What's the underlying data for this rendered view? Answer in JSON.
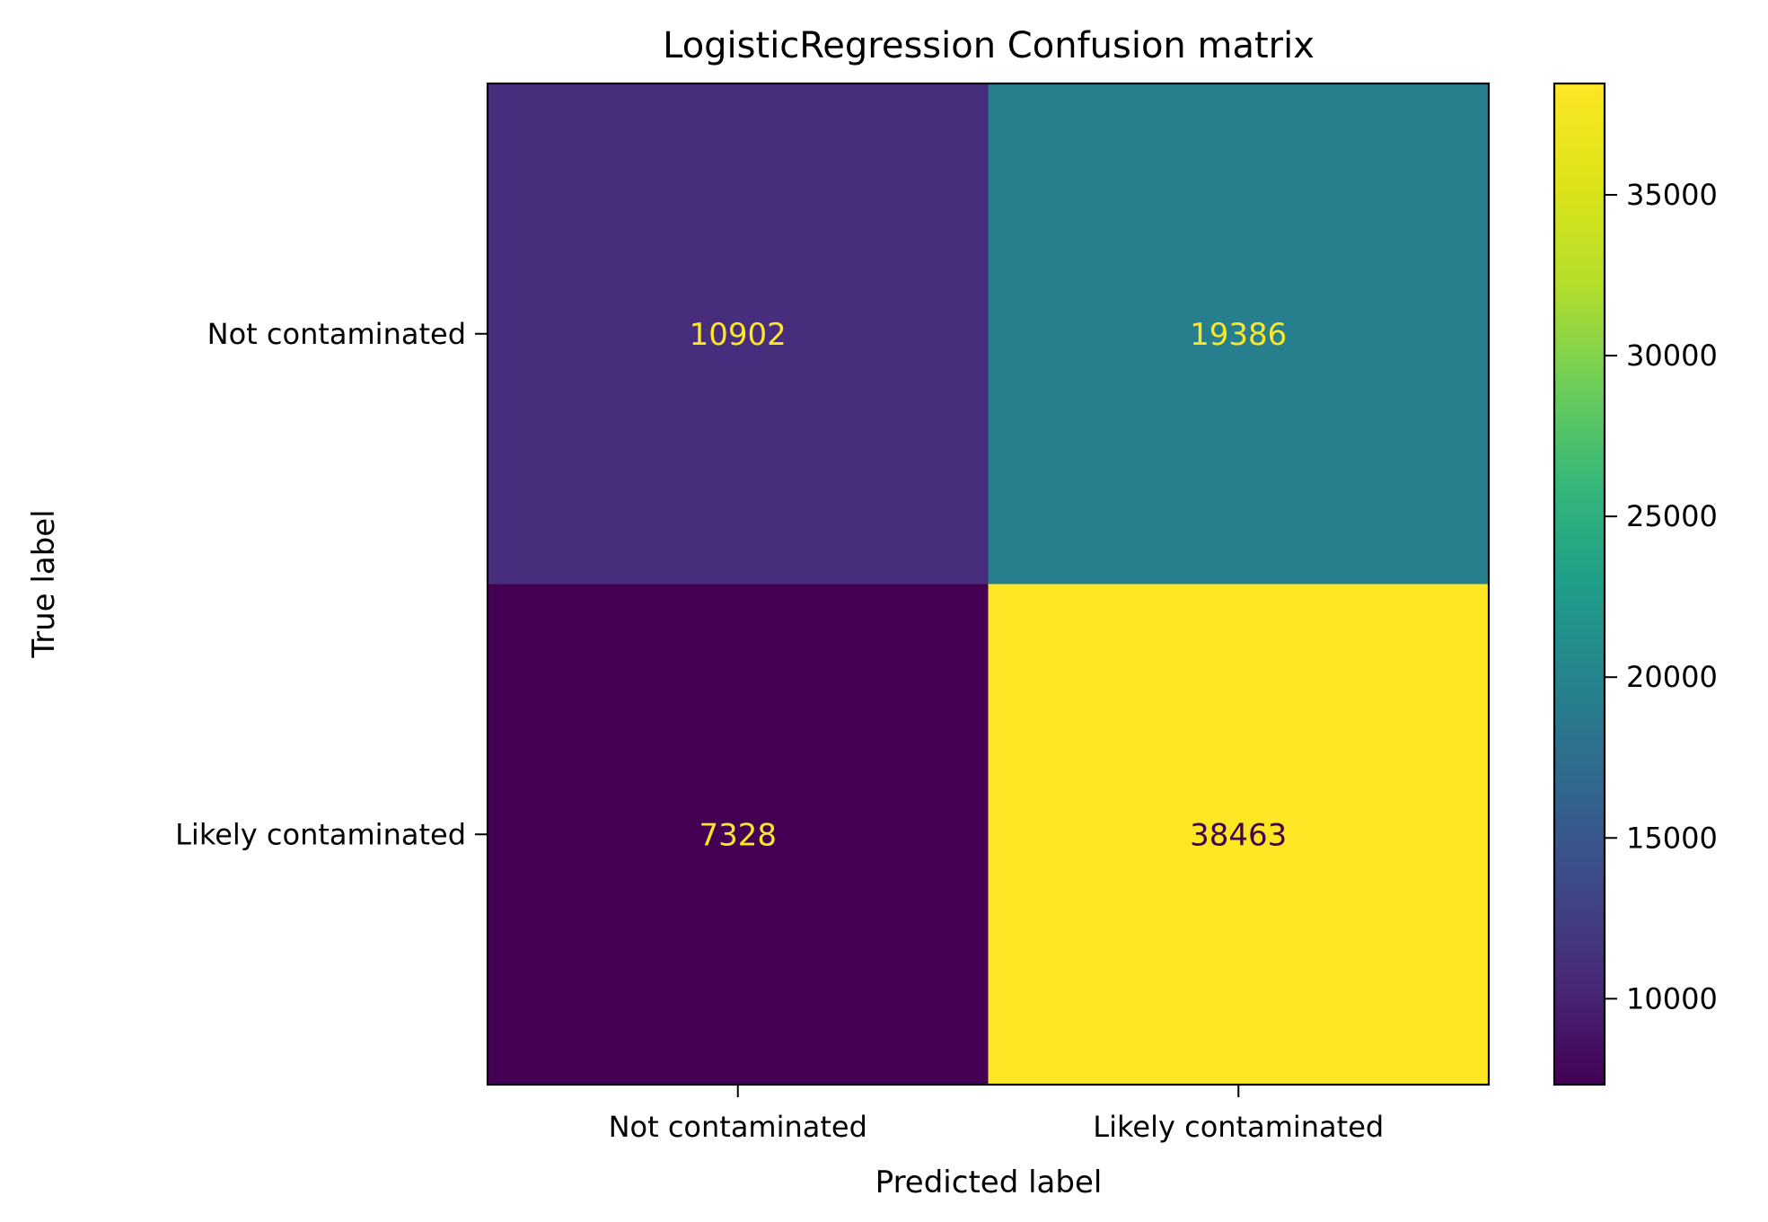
{
  "chart_data": {
    "type": "heatmap",
    "title": "LogisticRegression Confusion matrix",
    "xlabel": "Predicted label",
    "ylabel": "True label",
    "x_categories": [
      "Not contaminated",
      "Likely contaminated"
    ],
    "y_categories": [
      "Not contaminated",
      "Likely contaminated"
    ],
    "matrix": [
      [
        10902,
        19386
      ],
      [
        7328,
        38463
      ]
    ],
    "colormap": "viridis",
    "colorbar": {
      "min": 7328,
      "max": 38463,
      "ticks": [
        10000,
        15000,
        20000,
        25000,
        30000,
        35000
      ],
      "tick_labels": [
        "10000",
        "15000",
        "20000",
        "25000",
        "30000",
        "35000"
      ]
    },
    "grid": false
  }
}
